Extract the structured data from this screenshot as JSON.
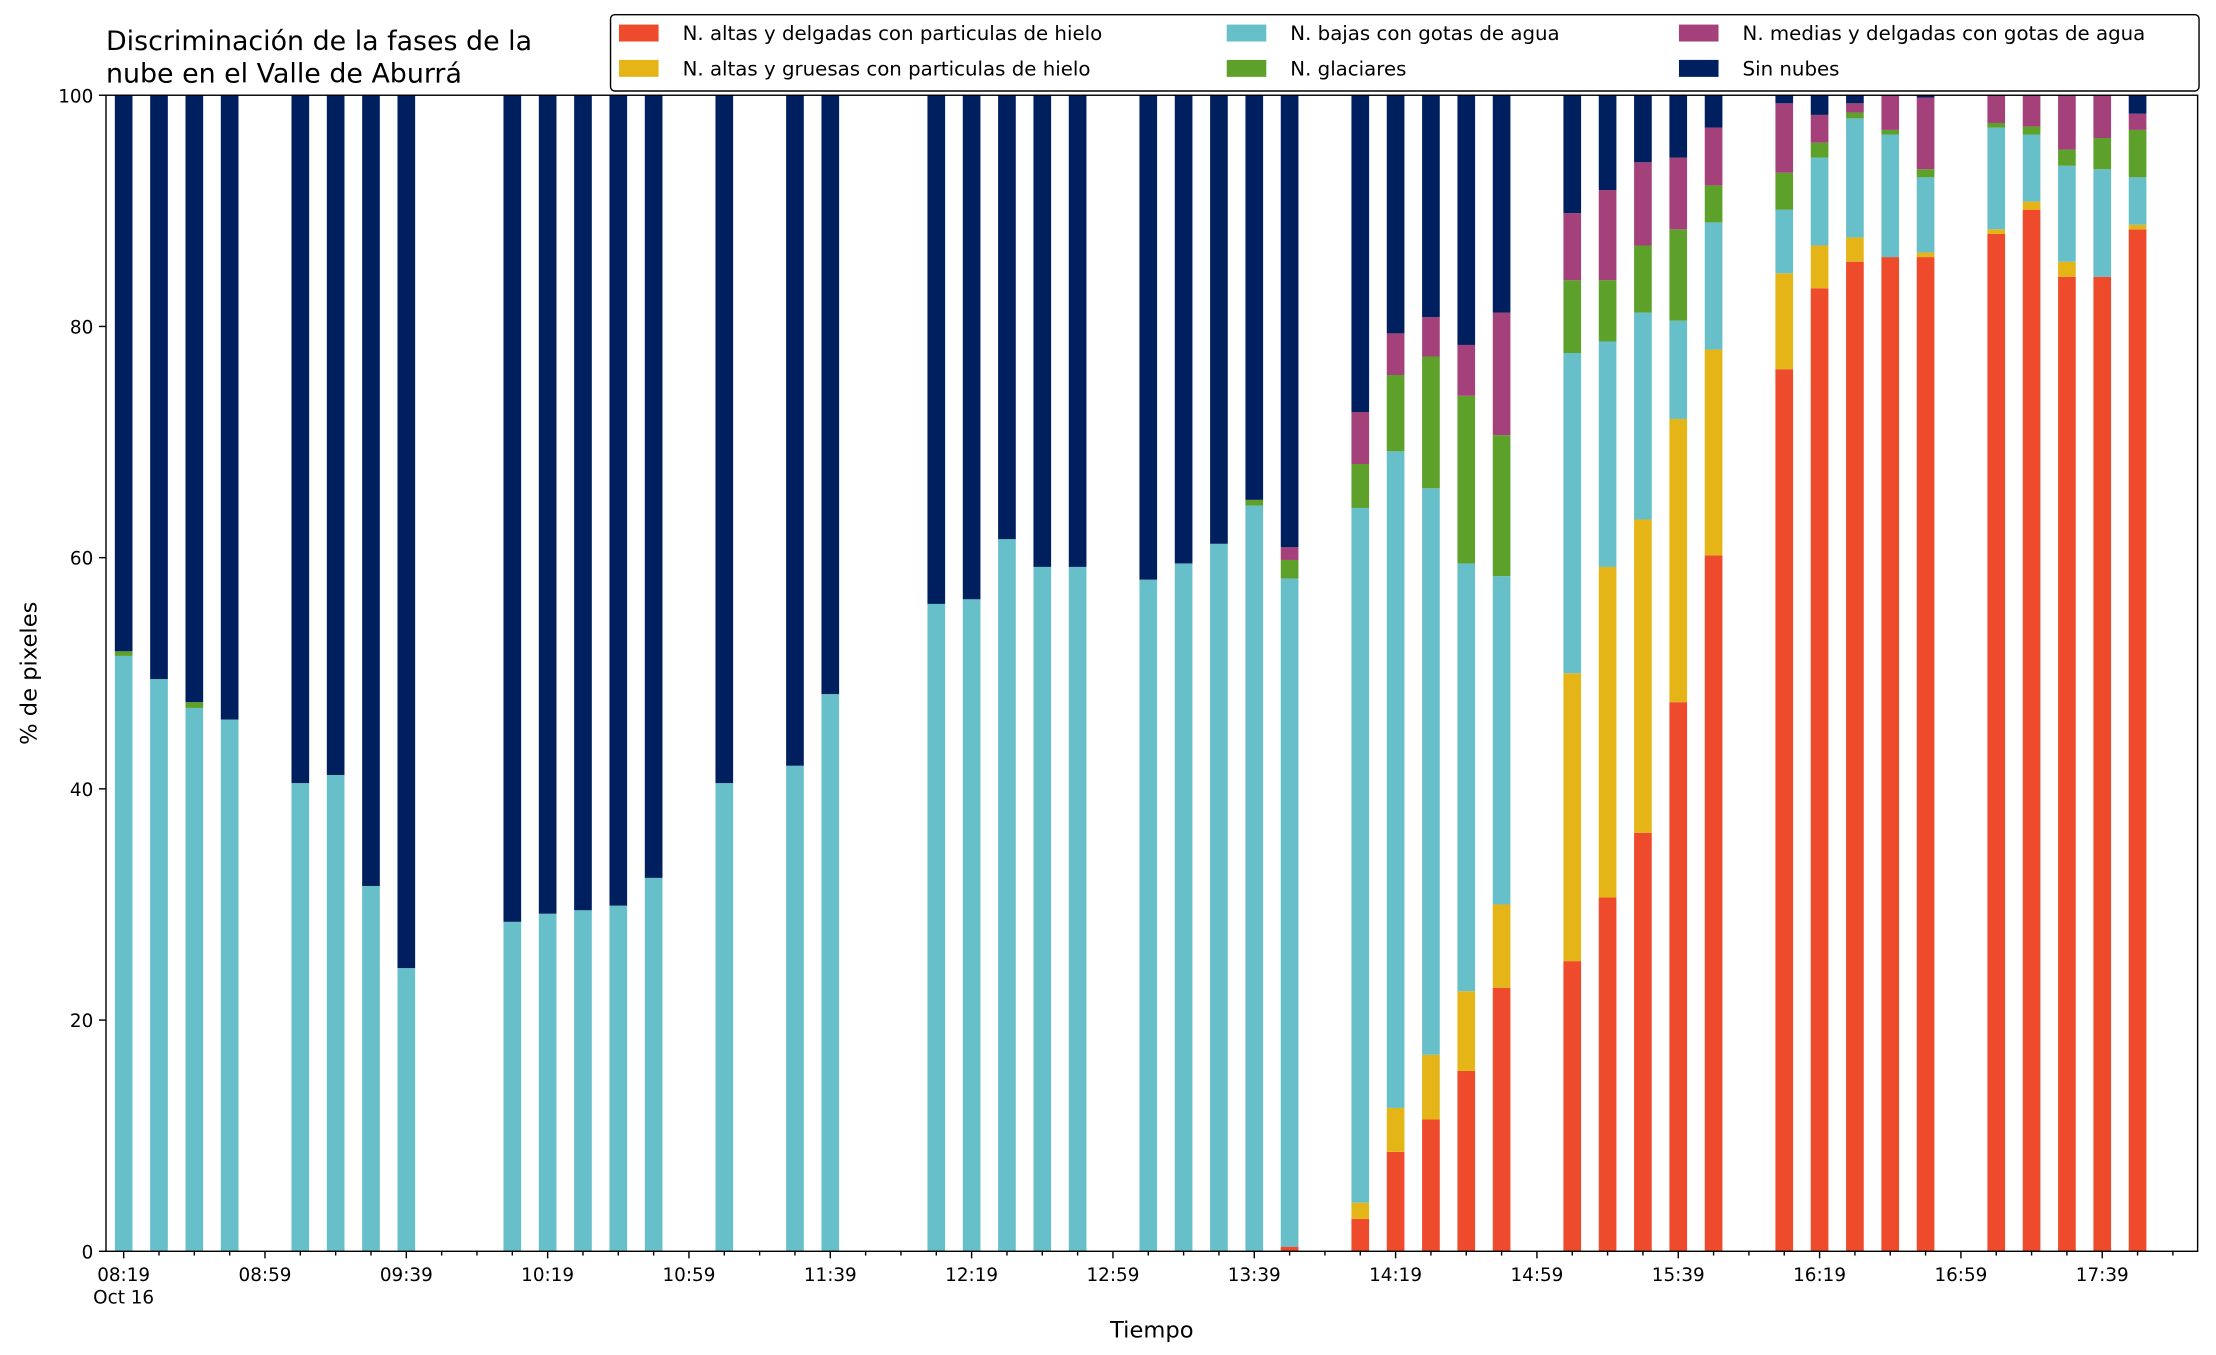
{
  "chart_data": {
    "type": "stacked_bar",
    "title": [
      "Discriminación de la fases de la",
      "nube en el Valle de Aburrá"
    ],
    "xlabel": "Tiempo",
    "ylabel": "% de pixeles",
    "x": [
      "08:19",
      "08:29",
      "08:39",
      "08:49",
      "09:09",
      "09:19",
      "09:29",
      "09:39",
      "10:09",
      "10:19",
      "10:29",
      "10:39",
      "10:49",
      "11:09",
      "11:29",
      "11:39",
      "12:09",
      "12:19",
      "12:29",
      "12:39",
      "12:49",
      "13:09",
      "13:19",
      "13:29",
      "13:39",
      "13:49",
      "14:09",
      "14:19",
      "14:29",
      "14:39",
      "14:49",
      "15:09",
      "15:19",
      "15:29",
      "15:39",
      "15:49",
      "16:09",
      "16:19",
      "16:29",
      "16:39",
      "16:49",
      "17:09",
      "17:19",
      "17:29",
      "17:39",
      "17:49"
    ],
    "xlim": [
      "08:14",
      "18:06"
    ],
    "xticks": [
      {
        "value": "08:19",
        "label": [
          "08:19",
          "Oct 16"
        ]
      },
      "08:59",
      "09:39",
      "10:19",
      "10:59",
      "11:39",
      "12:19",
      "12:59",
      "13:39",
      "14:19",
      "14:59",
      "15:39",
      "16:19",
      "16:59",
      "17:39"
    ],
    "xminorticks": [
      "08:29",
      "08:39",
      "08:49",
      "09:09",
      "09:19",
      "09:29",
      "09:49",
      "09:59",
      "10:09",
      "10:29",
      "10:39",
      "10:49",
      "11:09",
      "11:19",
      "11:29",
      "11:49",
      "11:59",
      "12:09",
      "12:29",
      "12:39",
      "12:49",
      "13:09",
      "13:19",
      "13:29",
      "13:49",
      "13:59",
      "14:09",
      "14:29",
      "14:39",
      "14:49",
      "15:09",
      "15:19",
      "15:29",
      "15:49",
      "15:59",
      "16:09",
      "16:29",
      "16:39",
      "16:49",
      "17:09",
      "17:19",
      "17:29",
      "17:49",
      "17:59"
    ],
    "ylim": [
      0,
      100
    ],
    "yticks": [
      0,
      20,
      40,
      60,
      80,
      100
    ],
    "grid": false,
    "legend": "top-right",
    "series": [
      {
        "name": "N. altas y delgadas con particulas de hielo",
        "color": "#ee4a2c",
        "values": [
          0,
          0,
          0,
          0,
          0,
          0,
          0,
          0,
          0,
          0,
          0,
          0,
          0,
          0,
          0,
          0,
          0,
          0,
          0,
          0,
          0,
          0,
          0,
          0,
          0,
          0.4,
          2.8,
          8.6,
          11.4,
          15.6,
          22.8,
          25.1,
          30.6,
          36.2,
          47.5,
          60.2,
          76.3,
          83.3,
          85.6,
          86.0,
          86.0,
          88.0,
          90.1,
          84.3,
          84.3,
          88.4
        ]
      },
      {
        "name": "N. altas y gruesas con particulas de hielo",
        "color": "#e5b517",
        "values": [
          0,
          0,
          0,
          0,
          0,
          0,
          0,
          0,
          0,
          0,
          0,
          0,
          0,
          0,
          0,
          0,
          0,
          0,
          0,
          0,
          0,
          0,
          0,
          0,
          0,
          0,
          1.4,
          3.8,
          5.6,
          6.9,
          7.2,
          24.9,
          28.6,
          27.1,
          24.5,
          17.8,
          8.3,
          3.7,
          2.1,
          0,
          0.4,
          0.4,
          0.7,
          1.3,
          0,
          0.4
        ]
      },
      {
        "name": "N. bajas con gotas de agua",
        "color": "#67bfca",
        "values": [
          51.5,
          49.5,
          47.0,
          46.0,
          40.5,
          41.2,
          31.6,
          24.5,
          28.5,
          29.2,
          29.5,
          29.9,
          32.3,
          40.5,
          42.0,
          48.2,
          56.0,
          56.4,
          61.6,
          59.2,
          59.2,
          58.1,
          59.5,
          61.2,
          64.5,
          57.8,
          60.1,
          56.8,
          49.0,
          37.0,
          28.4,
          27.7,
          19.5,
          17.9,
          8.5,
          11.0,
          5.5,
          7.6,
          10.3,
          10.6,
          6.5,
          8.8,
          5.8,
          8.3,
          9.3,
          4.1
        ]
      },
      {
        "name": "N. glaciares",
        "color": "#5da12b",
        "values": [
          0.4,
          0,
          0.5,
          0,
          0,
          0,
          0,
          0,
          0,
          0,
          0,
          0,
          0,
          0,
          0,
          0,
          0,
          0,
          0,
          0,
          0,
          0,
          0,
          0,
          0.5,
          1.6,
          3.8,
          6.6,
          11.4,
          14.5,
          12.2,
          6.3,
          5.3,
          5.8,
          7.9,
          3.2,
          3.2,
          1.3,
          0.5,
          0.4,
          0.7,
          0.4,
          0.7,
          1.4,
          2.7,
          4.1
        ]
      },
      {
        "name": "N. medias y delgadas con gotas de agua",
        "color": "#a5417a",
        "values": [
          0,
          0,
          0,
          0,
          0,
          0,
          0,
          0,
          0,
          0,
          0,
          0,
          0,
          0,
          0,
          0,
          0,
          0,
          0,
          0,
          0,
          0,
          0,
          0,
          0,
          1.1,
          4.5,
          3.6,
          3.4,
          4.4,
          10.6,
          5.8,
          7.8,
          7.2,
          6.2,
          5.0,
          6.0,
          2.4,
          0.8,
          3.0,
          6.2,
          2.4,
          2.7,
          4.7,
          3.7,
          1.4
        ]
      },
      {
        "name": "Sin nubes",
        "color": "#001f5e",
        "values": [
          48.1,
          50.5,
          52.5,
          54.0,
          59.5,
          58.8,
          68.4,
          75.5,
          71.5,
          70.8,
          70.5,
          70.1,
          67.7,
          59.5,
          58.0,
          51.8,
          44.0,
          43.6,
          38.4,
          40.8,
          40.8,
          41.9,
          40.5,
          38.8,
          35.0,
          39.1,
          27.4,
          20.6,
          19.2,
          21.6,
          18.8,
          10.2,
          8.2,
          5.8,
          5.4,
          2.8,
          0.7,
          1.7,
          0.7,
          0,
          0.2,
          0,
          0,
          0,
          0,
          1.6
        ]
      }
    ]
  }
}
